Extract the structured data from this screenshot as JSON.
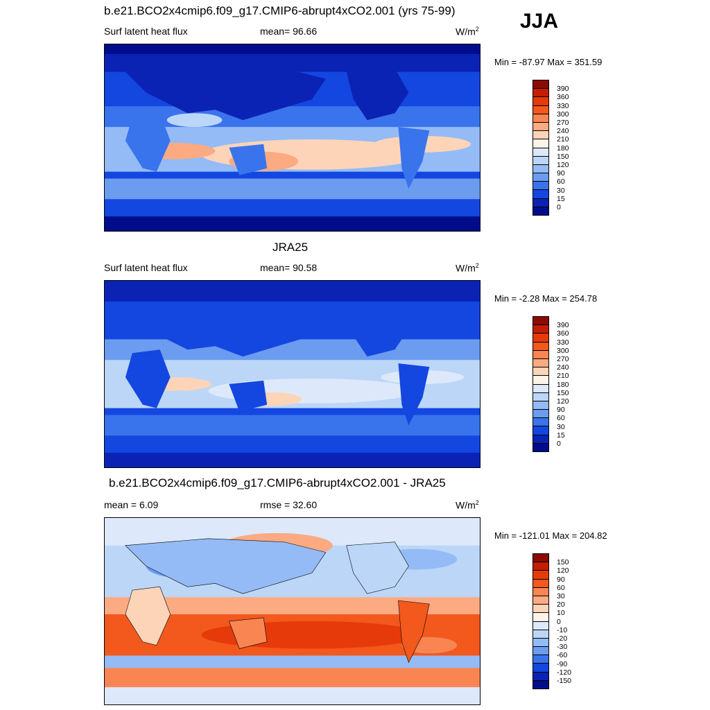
{
  "season": "JJA",
  "panels": [
    {
      "title": "b.e21.BCO2x4cmip6.f09_g17.CMIP6-abrupt4xCO2.001 (yrs 75-99)",
      "variable": "Surf latent heat flux",
      "mean_label": "mean=  96.66",
      "units": "W/m",
      "units_sup": "2",
      "minmax": "Min = -87.97 Max = 351.59",
      "palette": "flux",
      "map_type": "model"
    },
    {
      "title": "JRA25",
      "variable": "Surf latent heat flux",
      "mean_label": "mean=  90.58",
      "units": "W/m",
      "units_sup": "2",
      "minmax": "Min =  -2.28 Max = 254.78",
      "palette": "flux",
      "map_type": "obs"
    },
    {
      "title": "b.e21.BCO2x4cmip6.f09_g17.CMIP6-abrupt4xCO2.001 - JRA25",
      "mean_label": "mean =   6.09",
      "rmse_label": "rmse =  32.60",
      "units": "W/m",
      "units_sup": "2",
      "minmax": "Min = -121.01 Max = 204.82",
      "palette": "diff",
      "map_type": "diff"
    }
  ],
  "colorbars": {
    "flux": {
      "ticks": [
        "390",
        "360",
        "330",
        "300",
        "270",
        "240",
        "210",
        "180",
        "150",
        "120",
        "90",
        "60",
        "30",
        "15",
        "0"
      ],
      "colors": [
        "#8c0a00",
        "#c41e00",
        "#e63a0a",
        "#f3581d",
        "#f98552",
        "#fbaa82",
        "#fdd4b8",
        "#fef3e8",
        "#dde9fa",
        "#bcd6f8",
        "#94bbf5",
        "#6b9cf0",
        "#3a74ec",
        "#1446e0",
        "#0a23b5",
        "#000d8a"
      ]
    },
    "diff": {
      "ticks": [
        "150",
        "120",
        "90",
        "60",
        "30",
        "20",
        "10",
        "0",
        "-10",
        "-20",
        "-30",
        "-60",
        "-90",
        "-120",
        "-150"
      ],
      "colors": [
        "#8c0a00",
        "#c41e00",
        "#e63a0a",
        "#f3581d",
        "#f98552",
        "#fbaa82",
        "#fdd4b8",
        "#fef3e8",
        "#dde9fa",
        "#bcd6f8",
        "#94bbf5",
        "#6b9cf0",
        "#3a74ec",
        "#1446e0",
        "#0a23b5",
        "#000d8a"
      ]
    }
  }
}
